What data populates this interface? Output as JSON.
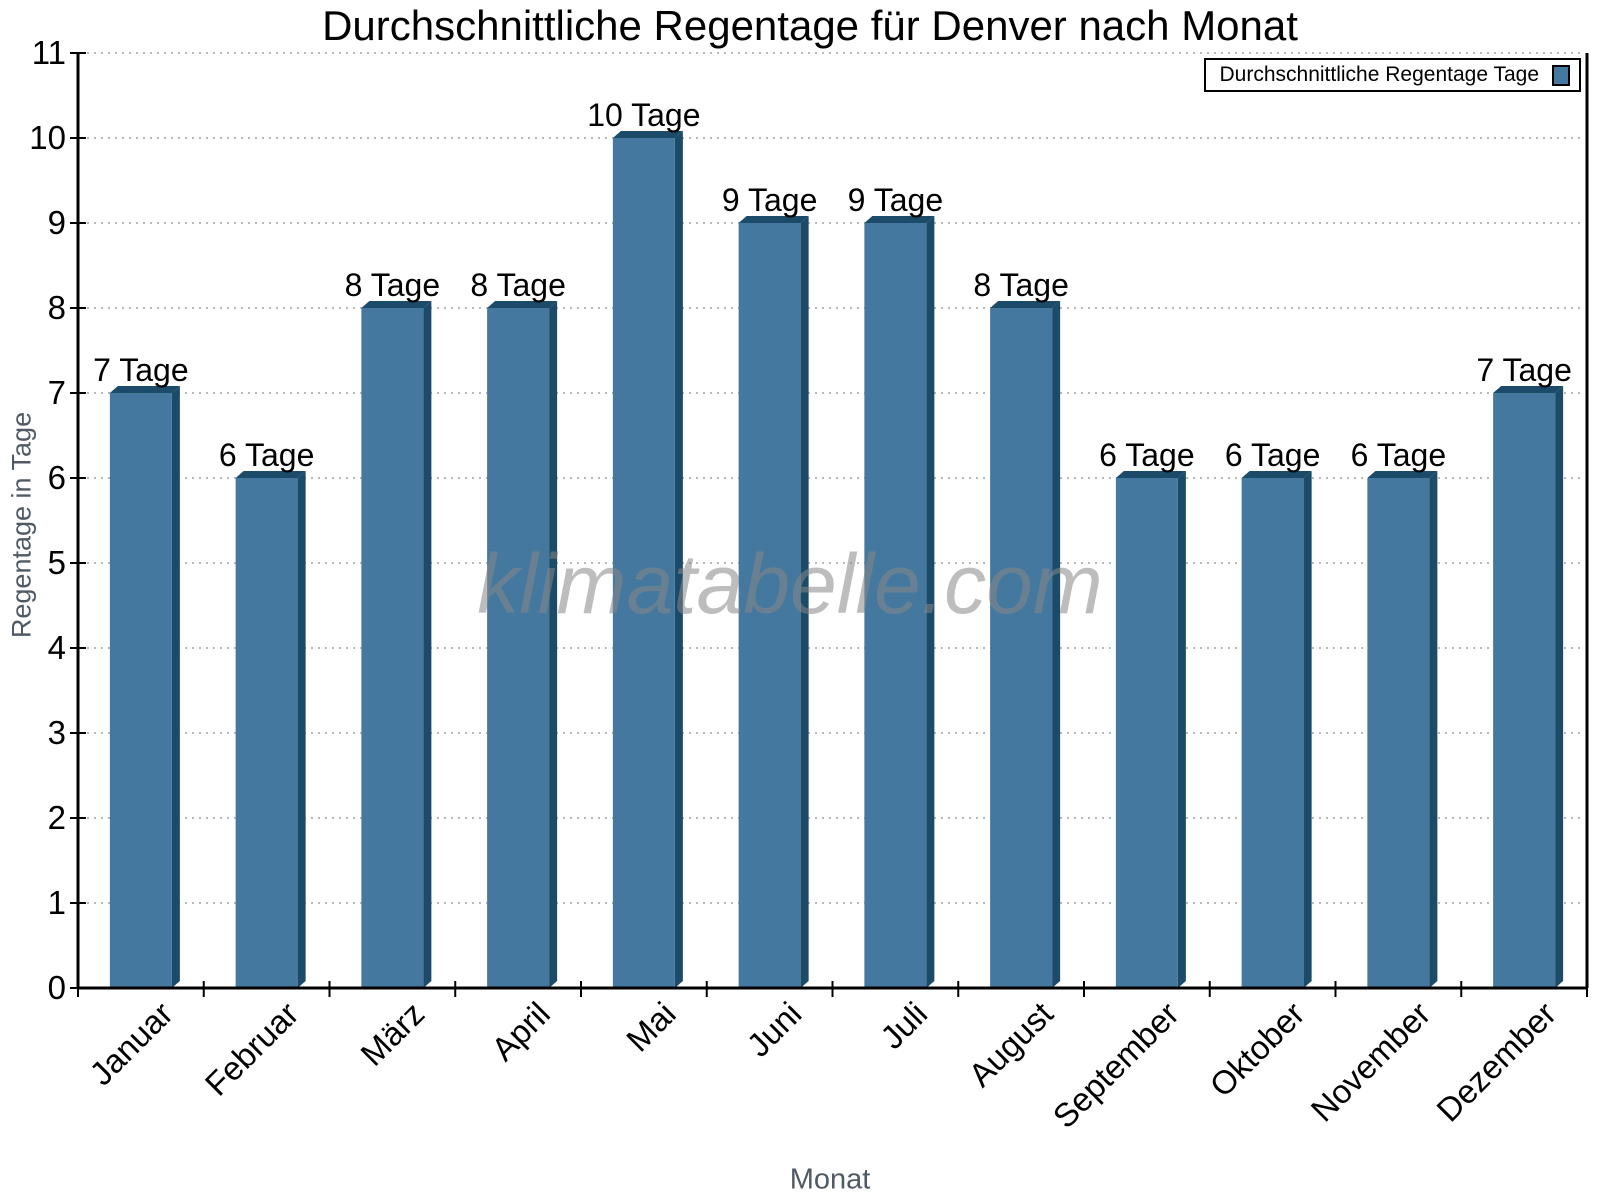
{
  "page": {
    "watermark": "klimatabelle.com"
  },
  "chart_data": {
    "type": "bar",
    "title": "Durchschnittliche Regentage für Denver nach Monat",
    "xlabel": "Monat",
    "ylabel": "Regentage in Tage",
    "categories": [
      "Januar",
      "Februar",
      "März",
      "April",
      "Mai",
      "Juni",
      "Juli",
      "August",
      "September",
      "Oktober",
      "November",
      "Dezember"
    ],
    "values": [
      7,
      6,
      8,
      8,
      10,
      9,
      9,
      8,
      6,
      6,
      6,
      7
    ],
    "bar_labels": [
      "7 Tage",
      "6 Tage",
      "8 Tage",
      "8 Tage",
      "10 Tage",
      "9 Tage",
      "9 Tage",
      "8 Tage",
      "6 Tage",
      "6 Tage",
      "6 Tage",
      "7 Tage"
    ],
    "ylim": [
      0,
      11
    ],
    "yticks": [
      0,
      1,
      2,
      3,
      4,
      5,
      6,
      7,
      8,
      9,
      10,
      11
    ],
    "grid": "horizontal-dotted",
    "legend": {
      "label": "Durchschnittliche Regentage Tage",
      "position": "top-right"
    },
    "colors": {
      "bar_face": "#44789e",
      "bar_shade": "#1b4b68",
      "grid": "#b9b9b9",
      "axis": "#000000",
      "axis_title": "#505a64",
      "title": "#000000",
      "watermark": "#868686",
      "background": "#ffffff"
    }
  }
}
